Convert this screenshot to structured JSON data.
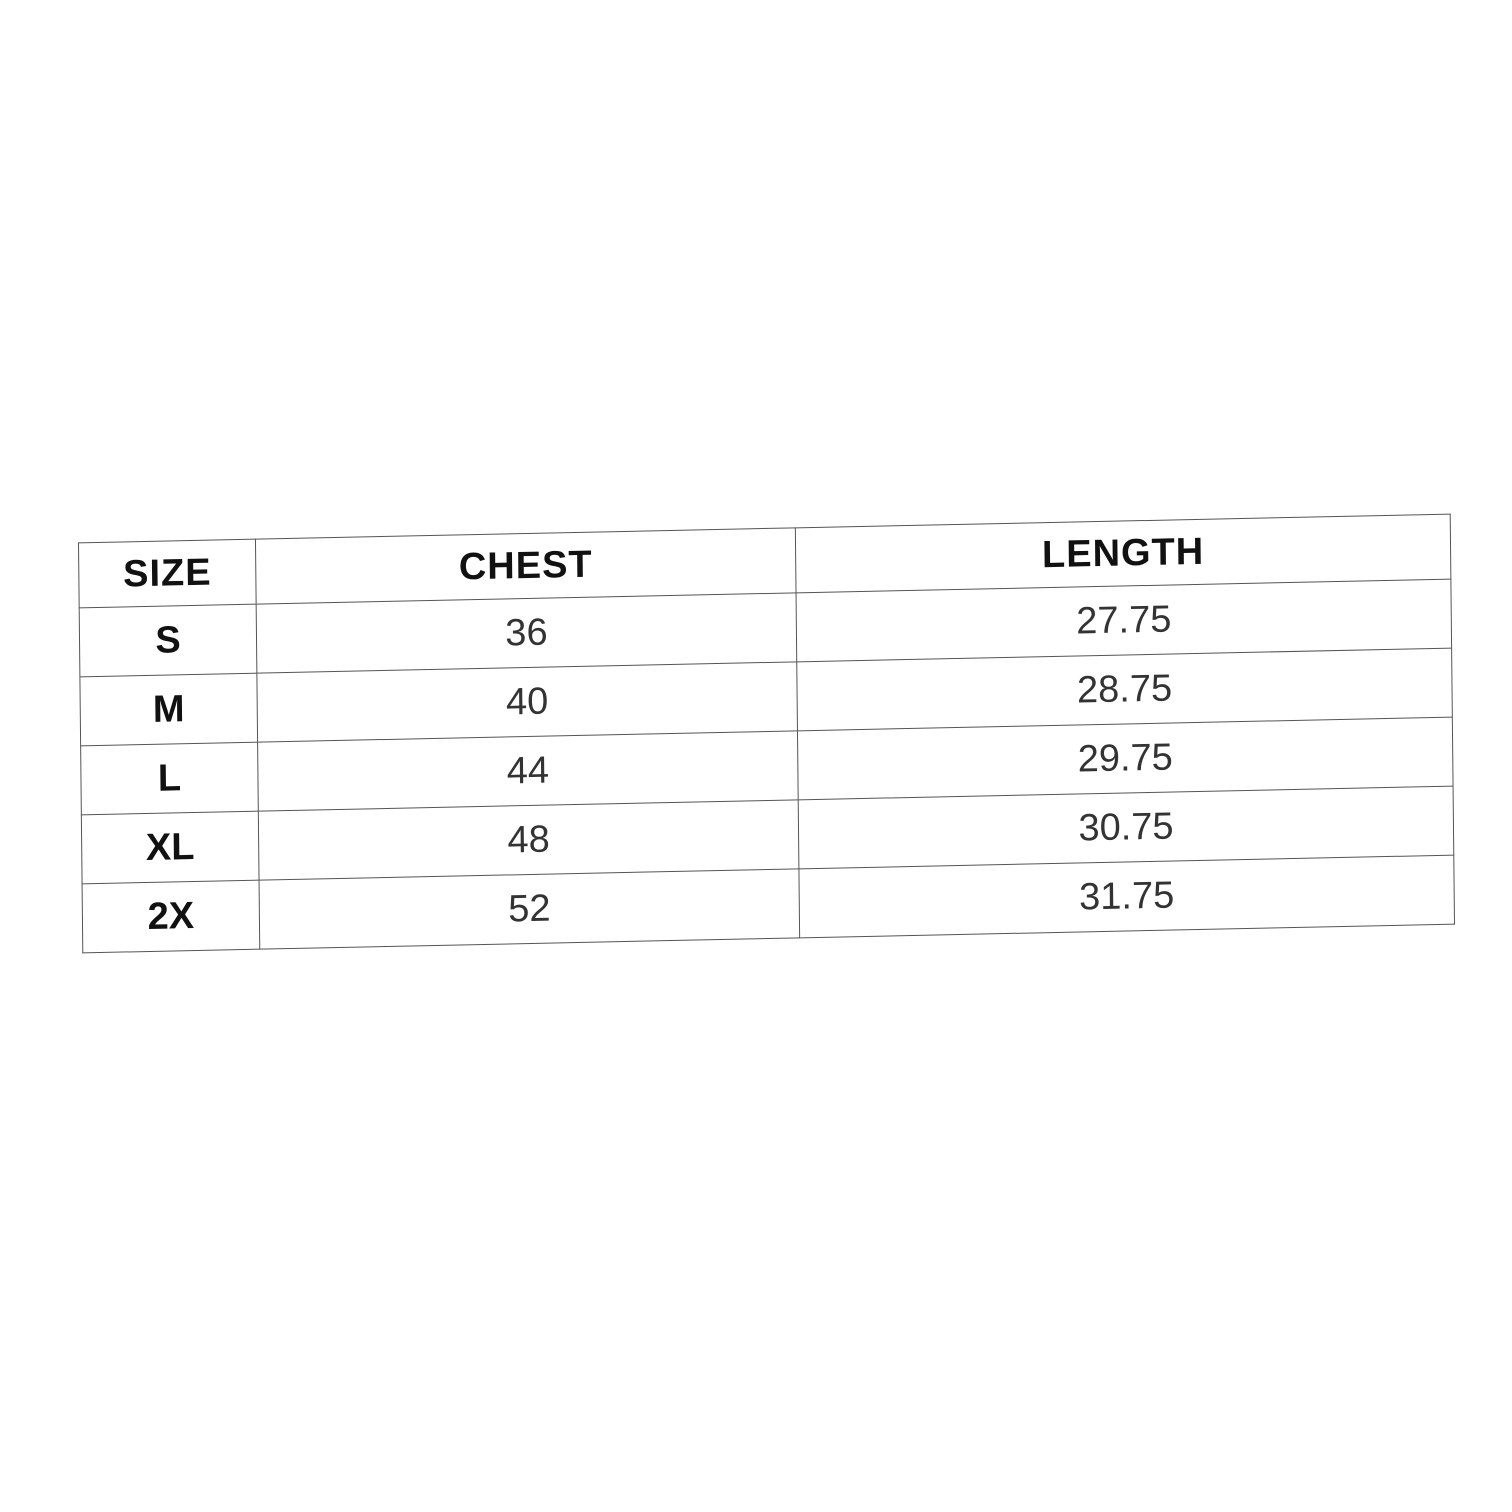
{
  "table": {
    "headers": [
      "SIZE",
      "CHEST",
      "LENGTH"
    ],
    "rows": [
      [
        "S",
        "36",
        "27.75"
      ],
      [
        "M",
        "40",
        "28.75"
      ],
      [
        "L",
        "44",
        "29.75"
      ],
      [
        "XL",
        "48",
        "30.75"
      ],
      [
        "2X",
        "52",
        "31.75"
      ]
    ]
  }
}
